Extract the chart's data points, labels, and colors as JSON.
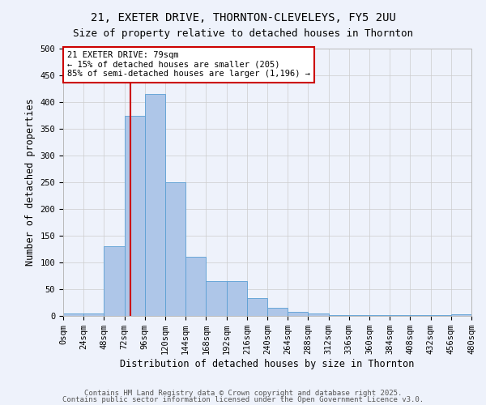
{
  "title": "21, EXETER DRIVE, THORNTON-CLEVELEYS, FY5 2UU",
  "subtitle": "Size of property relative to detached houses in Thornton",
  "xlabel": "Distribution of detached houses by size in Thornton",
  "ylabel": "Number of detached properties",
  "bin_edges": [
    0,
    24,
    48,
    72,
    96,
    120,
    144,
    168,
    192,
    216,
    240,
    264,
    288,
    312,
    336,
    360,
    384,
    408,
    432,
    456,
    480
  ],
  "bar_heights": [
    5,
    5,
    130,
    375,
    415,
    250,
    110,
    65,
    65,
    33,
    15,
    8,
    5,
    2,
    2,
    2,
    1,
    1,
    1,
    3
  ],
  "bar_color": "#aec6e8",
  "bar_edgecolor": "#5a9fd4",
  "property_size": 79,
  "annotation_line1": "21 EXETER DRIVE: 79sqm",
  "annotation_line2": "← 15% of detached houses are smaller (205)",
  "annotation_line3": "85% of semi-detached houses are larger (1,196) →",
  "annotation_box_color": "#ffffff",
  "annotation_box_edgecolor": "#cc0000",
  "vline_color": "#cc0000",
  "ylim": [
    0,
    500
  ],
  "yticks": [
    0,
    50,
    100,
    150,
    200,
    250,
    300,
    350,
    400,
    450,
    500
  ],
  "grid_color": "#cccccc",
  "bg_color": "#eef2fb",
  "footer1": "Contains HM Land Registry data © Crown copyright and database right 2025.",
  "footer2": "Contains public sector information licensed under the Open Government Licence v3.0.",
  "title_fontsize": 10,
  "subtitle_fontsize": 9,
  "axis_label_fontsize": 8.5,
  "tick_fontsize": 7.5,
  "annotation_fontsize": 7.5,
  "footer_fontsize": 6.5
}
